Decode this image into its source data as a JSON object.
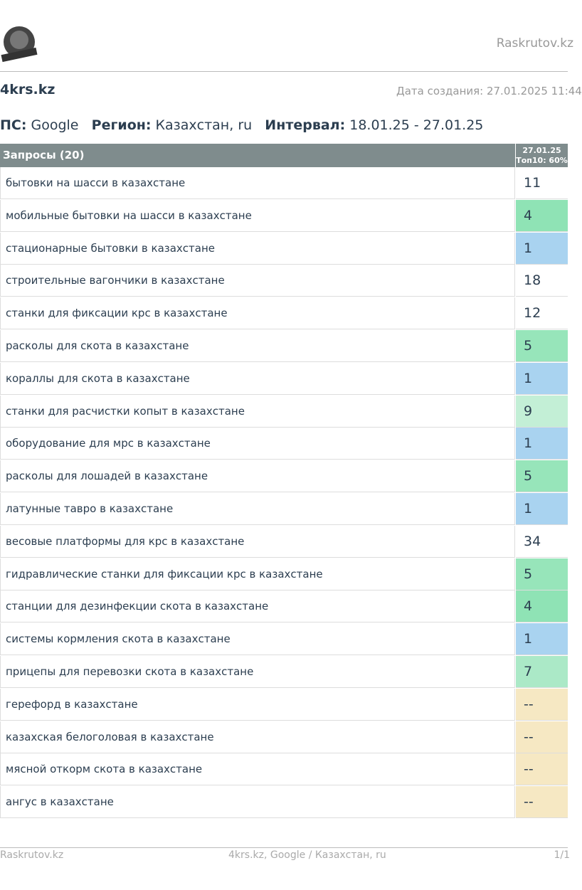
{
  "header": {
    "site": "Raskrutov.kz"
  },
  "project": {
    "title": "4krs.kz",
    "created": "Дата создания: 27.01.2025 11:44"
  },
  "params": {
    "engine_label": "ПС:",
    "engine": "Google",
    "region_label": "Регион:",
    "region": "Казахстан, ru",
    "interval_label": "Интервал:",
    "interval": "18.01.25 - 27.01.25"
  },
  "table": {
    "query_header": "Запросы (20)",
    "date_header": "27.01.25",
    "top_header": "Топ10: 60%",
    "rows": [
      {
        "query": "бытовки на шасси в казахстане",
        "position": 11,
        "color": "#ffffff"
      },
      {
        "query": "мобильные бытовки на шасси в казахстане",
        "position": 4,
        "color": "#8fe3b5"
      },
      {
        "query": "стационарные бытовки в казахстане",
        "position": 1,
        "color": "#a9d3f0"
      },
      {
        "query": "строительные вагончики в казахстане",
        "position": 18,
        "color": "#ffffff"
      },
      {
        "query": "станки для фиксации крс в казахстане",
        "position": 12,
        "color": "#ffffff"
      },
      {
        "query": "расколы для скота в казахстане",
        "position": 5,
        "color": "#97e5ba"
      },
      {
        "query": "кораллы для скота в казахстане",
        "position": 1,
        "color": "#a9d3f0"
      },
      {
        "query": "станки для расчистки копыт в казахстане",
        "position": 9,
        "color": "#c3efd6"
      },
      {
        "query": "оборудование для мрс в казахстане",
        "position": 1,
        "color": "#a9d3f0"
      },
      {
        "query": "расколы для лошадей в казахстане",
        "position": 5,
        "color": "#97e5ba"
      },
      {
        "query": "латунные тавро в казахстане",
        "position": 1,
        "color": "#a9d3f0"
      },
      {
        "query": "весовые платформы для крс в казахстане",
        "position": 34,
        "color": "#ffffff"
      },
      {
        "query": "гидравлические станки для фиксации крс в казахстане",
        "position": 5,
        "color": "#97e5ba"
      },
      {
        "query": "станции для дезинфекции скота в казахстане",
        "position": 4,
        "color": "#8fe3b5"
      },
      {
        "query": "системы кормления скота в казахстане",
        "position": 1,
        "color": "#a9d3f0"
      },
      {
        "query": "прицепы для перевозки скота в казахстане",
        "position": 7,
        "color": "#abe9c7"
      },
      {
        "query": "герефорд в казахстане",
        "position": "--",
        "color": "#f6e8c3"
      },
      {
        "query": "казахская белоголовая в казахстане",
        "position": "--",
        "color": "#f6e8c3"
      },
      {
        "query": "мясной откорм скота в казахстане",
        "position": "--",
        "color": "#f6e8c3"
      },
      {
        "query": "ангус в казахстане",
        "position": "--",
        "color": "#f6e8c3"
      }
    ]
  },
  "footer": {
    "left": "Raskrutov.kz",
    "center": "4krs.kz, Google / Казахстан, ru",
    "right": "1/1"
  }
}
